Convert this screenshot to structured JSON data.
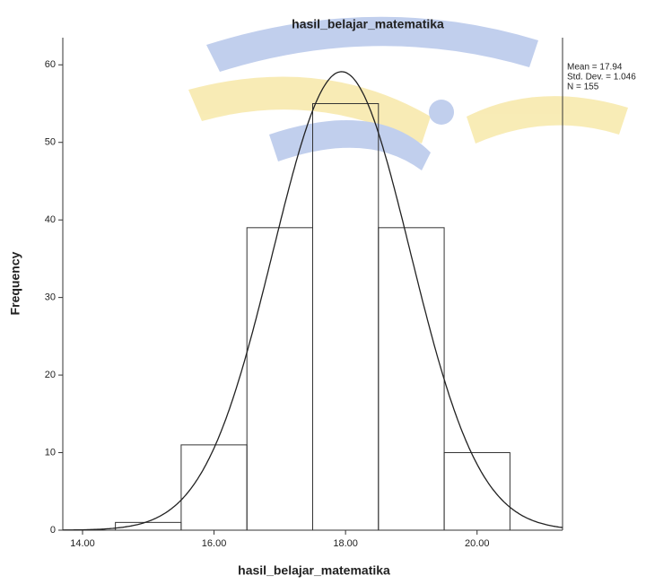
{
  "chart_data": {
    "type": "histogram",
    "title": "hasil_belajar_matematika",
    "x_label": "hasil_belajar_matematika",
    "y_label": "Frequency",
    "bins": [
      14.5,
      15.5,
      16.5,
      17.5,
      18.5,
      19.5,
      20.5
    ],
    "values": [
      1,
      11,
      39,
      55,
      39,
      10
    ],
    "color": "#333333",
    "xlim": [
      13.7,
      21.3
    ],
    "ylim": [
      0,
      63.5
    ],
    "xticks": [
      {
        "value": 14,
        "label": "14.00"
      },
      {
        "value": 16,
        "label": "16.00"
      },
      {
        "value": 18,
        "label": "18.00"
      },
      {
        "value": 20,
        "label": "20.00"
      }
    ],
    "yticks": [
      0,
      10,
      20,
      30,
      40,
      50,
      60
    ],
    "normal_curve": {
      "mean": {
        "value": 17.94,
        "label": "Mean = 17.94"
      },
      "sd": {
        "value": 1.046,
        "label": "Std. Dev. = 1.046"
      },
      "n": {
        "value": 155,
        "label": "N = 155"
      }
    }
  }
}
